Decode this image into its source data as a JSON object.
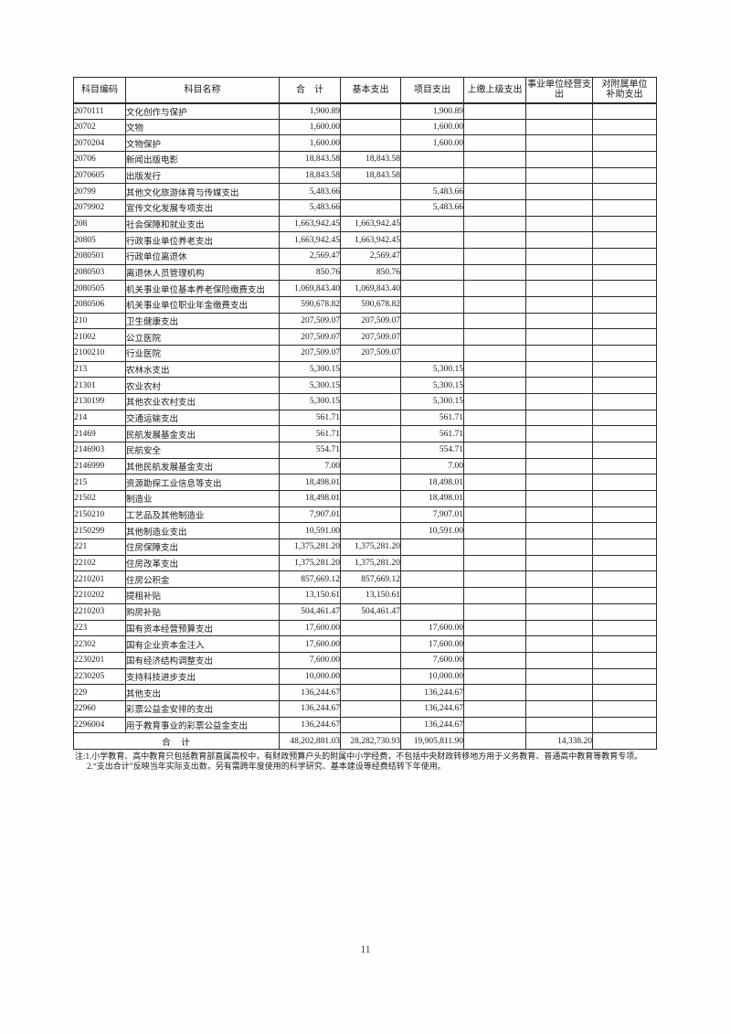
{
  "page": {
    "number": "11"
  },
  "table": {
    "headers": [
      "科目编码",
      "科目名称",
      "合　计",
      "基本支出",
      "项目支出",
      "上缴上级支出",
      "事业单位经营支\n出",
      "对附属单位\n补助支出"
    ],
    "rows": [
      {
        "code": "2070111",
        "name": "文化创作与保护",
        "level": 2,
        "total": "1,900.89",
        "basic": "",
        "project": "1,900.89",
        "upper": "",
        "operating": "",
        "subsidy": ""
      },
      {
        "code": "20702",
        "name": "文物",
        "level": 1,
        "total": "1,600.00",
        "basic": "",
        "project": "1,600.00",
        "upper": "",
        "operating": "",
        "subsidy": ""
      },
      {
        "code": "2070204",
        "name": "文物保护",
        "level": 2,
        "total": "1,600.00",
        "basic": "",
        "project": "1,600.00",
        "upper": "",
        "operating": "",
        "subsidy": ""
      },
      {
        "code": "20706",
        "name": "新闻出版电影",
        "level": 1,
        "total": "18,843.58",
        "basic": "18,843.58",
        "project": "",
        "upper": "",
        "operating": "",
        "subsidy": ""
      },
      {
        "code": "2070605",
        "name": "出版发行",
        "level": 2,
        "total": "18,843.58",
        "basic": "18,843.58",
        "project": "",
        "upper": "",
        "operating": "",
        "subsidy": ""
      },
      {
        "code": "20799",
        "name": "其他文化旅游体育与传媒支出",
        "level": 1,
        "total": "5,483.66",
        "basic": "",
        "project": "5,483.66",
        "upper": "",
        "operating": "",
        "subsidy": ""
      },
      {
        "code": "2079902",
        "name": "宣传文化发展专项支出",
        "level": 2,
        "total": "5,483.66",
        "basic": "",
        "project": "5,483.66",
        "upper": "",
        "operating": "",
        "subsidy": ""
      },
      {
        "code": "208",
        "name": "社会保障和就业支出",
        "level": 0,
        "total": "1,663,942.45",
        "basic": "1,663,942.45",
        "project": "",
        "upper": "",
        "operating": "",
        "subsidy": ""
      },
      {
        "code": "20805",
        "name": "行政事业单位养老支出",
        "level": 1,
        "total": "1,663,942.45",
        "basic": "1,663,942.45",
        "project": "",
        "upper": "",
        "operating": "",
        "subsidy": ""
      },
      {
        "code": "2080501",
        "name": "行政单位离退休",
        "level": 2,
        "total": "2,569.47",
        "basic": "2,569.47",
        "project": "",
        "upper": "",
        "operating": "",
        "subsidy": ""
      },
      {
        "code": "2080503",
        "name": "离退休人员管理机构",
        "level": 2,
        "total": "850.76",
        "basic": "850.76",
        "project": "",
        "upper": "",
        "operating": "",
        "subsidy": ""
      },
      {
        "code": "2080505",
        "name": "机关事业单位基本养老保险缴费支出",
        "level": 2,
        "total": "1,069,843.40",
        "basic": "1,069,843.40",
        "project": "",
        "upper": "",
        "operating": "",
        "subsidy": ""
      },
      {
        "code": "2080506",
        "name": "机关事业单位职业年金缴费支出",
        "level": 2,
        "total": "590,678.82",
        "basic": "590,678.82",
        "project": "",
        "upper": "",
        "operating": "",
        "subsidy": ""
      },
      {
        "code": "210",
        "name": "卫生健康支出",
        "level": 0,
        "total": "207,509.07",
        "basic": "207,509.07",
        "project": "",
        "upper": "",
        "operating": "",
        "subsidy": ""
      },
      {
        "code": "21002",
        "name": "公立医院",
        "level": 1,
        "total": "207,509.07",
        "basic": "207,509.07",
        "project": "",
        "upper": "",
        "operating": "",
        "subsidy": ""
      },
      {
        "code": "2100210",
        "name": "行业医院",
        "level": 2,
        "total": "207,509.07",
        "basic": "207,509.07",
        "project": "",
        "upper": "",
        "operating": "",
        "subsidy": ""
      },
      {
        "code": "213",
        "name": "农林水支出",
        "level": 0,
        "total": "5,300.15",
        "basic": "",
        "project": "5,300.15",
        "upper": "",
        "operating": "",
        "subsidy": ""
      },
      {
        "code": "21301",
        "name": "农业农村",
        "level": 1,
        "total": "5,300.15",
        "basic": "",
        "project": "5,300.15",
        "upper": "",
        "operating": "",
        "subsidy": ""
      },
      {
        "code": "2130199",
        "name": "其他农业农村支出",
        "level": 2,
        "total": "5,300.15",
        "basic": "",
        "project": "5,300.15",
        "upper": "",
        "operating": "",
        "subsidy": ""
      },
      {
        "code": "214",
        "name": "交通运输支出",
        "level": 0,
        "total": "561.71",
        "basic": "",
        "project": "561.71",
        "upper": "",
        "operating": "",
        "subsidy": ""
      },
      {
        "code": "21469",
        "name": "民航发展基金支出",
        "level": 1,
        "total": "561.71",
        "basic": "",
        "project": "561.71",
        "upper": "",
        "operating": "",
        "subsidy": ""
      },
      {
        "code": "2146903",
        "name": "民航安全",
        "level": 2,
        "total": "554.71",
        "basic": "",
        "project": "554.71",
        "upper": "",
        "operating": "",
        "subsidy": ""
      },
      {
        "code": "2146999",
        "name": "其他民航发展基金支出",
        "level": 2,
        "total": "7.00",
        "basic": "",
        "project": "7.00",
        "upper": "",
        "operating": "",
        "subsidy": ""
      },
      {
        "code": "215",
        "name": "资源勘探工业信息等支出",
        "level": 0,
        "total": "18,498.01",
        "basic": "",
        "project": "18,498.01",
        "upper": "",
        "operating": "",
        "subsidy": ""
      },
      {
        "code": "21502",
        "name": "制造业",
        "level": 1,
        "total": "18,498.01",
        "basic": "",
        "project": "18,498.01",
        "upper": "",
        "operating": "",
        "subsidy": ""
      },
      {
        "code": "2150210",
        "name": "工艺品及其他制造业",
        "level": 2,
        "total": "7,907.01",
        "basic": "",
        "project": "7,907.01",
        "upper": "",
        "operating": "",
        "subsidy": ""
      },
      {
        "code": "2150299",
        "name": "其他制造业支出",
        "level": 2,
        "total": "10,591.00",
        "basic": "",
        "project": "10,591.00",
        "upper": "",
        "operating": "",
        "subsidy": ""
      },
      {
        "code": "221",
        "name": "住房保障支出",
        "level": 0,
        "total": "1,375,281.20",
        "basic": "1,375,281.20",
        "project": "",
        "upper": "",
        "operating": "",
        "subsidy": ""
      },
      {
        "code": "22102",
        "name": "住房改革支出",
        "level": 1,
        "total": "1,375,281.20",
        "basic": "1,375,281.20",
        "project": "",
        "upper": "",
        "operating": "",
        "subsidy": ""
      },
      {
        "code": "2210201",
        "name": "住房公积金",
        "level": 2,
        "total": "857,669.12",
        "basic": "857,669.12",
        "project": "",
        "upper": "",
        "operating": "",
        "subsidy": ""
      },
      {
        "code": "2210202",
        "name": "提租补贴",
        "level": 2,
        "total": "13,150.61",
        "basic": "13,150.61",
        "project": "",
        "upper": "",
        "operating": "",
        "subsidy": ""
      },
      {
        "code": "2210203",
        "name": "购房补贴",
        "level": 2,
        "total": "504,461.47",
        "basic": "504,461.47",
        "project": "",
        "upper": "",
        "operating": "",
        "subsidy": ""
      },
      {
        "code": "223",
        "name": "国有资本经营预算支出",
        "level": 0,
        "total": "17,600.00",
        "basic": "",
        "project": "17,600.00",
        "upper": "",
        "operating": "",
        "subsidy": ""
      },
      {
        "code": "22302",
        "name": "国有企业资本金注入",
        "level": 1,
        "total": "17,600.00",
        "basic": "",
        "project": "17,600.00",
        "upper": "",
        "operating": "",
        "subsidy": ""
      },
      {
        "code": "2230201",
        "name": "国有经济结构调整支出",
        "level": 2,
        "total": "7,600.00",
        "basic": "",
        "project": "7,600.00",
        "upper": "",
        "operating": "",
        "subsidy": ""
      },
      {
        "code": "2230205",
        "name": "支持科技进步支出",
        "level": 2,
        "total": "10,000.00",
        "basic": "",
        "project": "10,000.00",
        "upper": "",
        "operating": "",
        "subsidy": ""
      },
      {
        "code": "229",
        "name": "其他支出",
        "level": 0,
        "total": "136,244.67",
        "basic": "",
        "project": "136,244.67",
        "upper": "",
        "operating": "",
        "subsidy": ""
      },
      {
        "code": "22960",
        "name": "彩票公益金安排的支出",
        "level": 1,
        "total": "136,244.67",
        "basic": "",
        "project": "136,244.67",
        "upper": "",
        "operating": "",
        "subsidy": ""
      },
      {
        "code": "2296004",
        "name": "用于教育事业的彩票公益金支出",
        "level": 2,
        "total": "136,244.67",
        "basic": "",
        "project": "136,244.67",
        "upper": "",
        "operating": "",
        "subsidy": ""
      }
    ],
    "total_row": {
      "label": "合　计",
      "total": "48,202,881.03",
      "basic": "28,282,730.93",
      "project": "19,905,811.90",
      "upper": "",
      "operating": "14,338.20",
      "subsidy": ""
    }
  },
  "notes": {
    "line1": "注:1.小学教育、高中教育只包括教育部直属高校中，有财政预算户头的附属中小学经费，不包括中央财政转移地方用于义务教育、普通高中教育等教育专项。",
    "line2": "2.“支出合计”反映当年实际支出数，另有需跨年度使用的科学研究、基本建设等经费结转下年使用。"
  }
}
